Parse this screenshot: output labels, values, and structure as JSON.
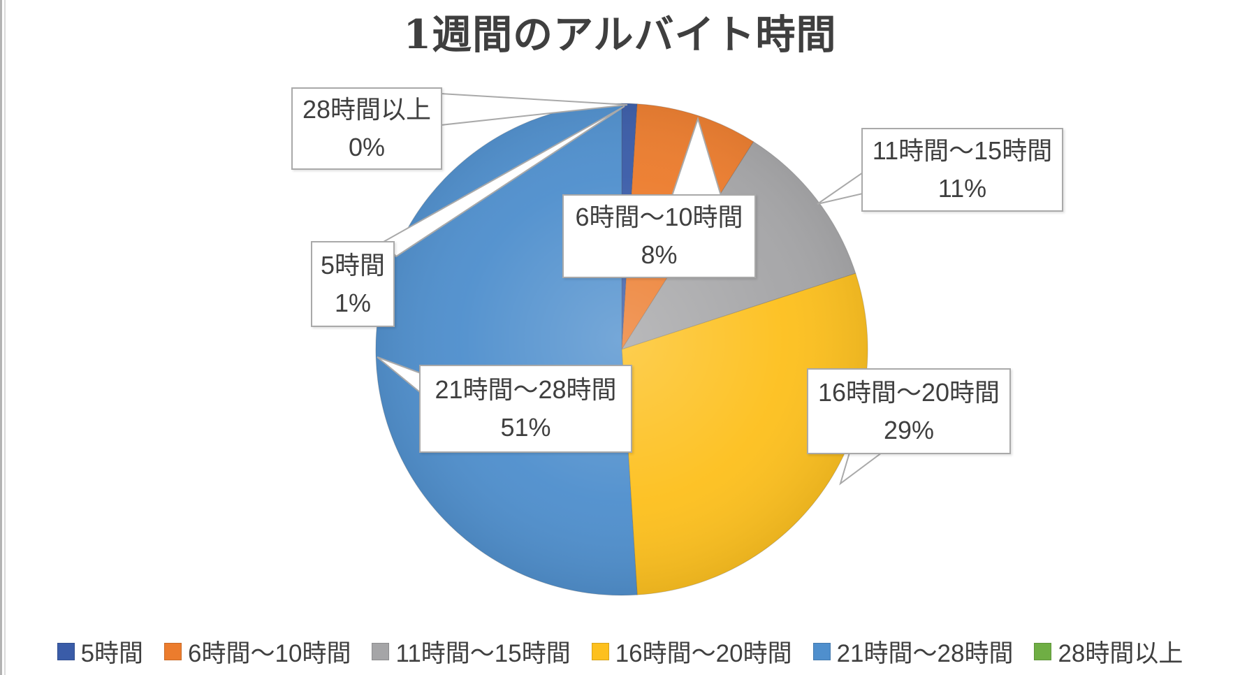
{
  "chart_data": {
    "type": "pie",
    "title": "1週間のアルバイト時間",
    "categories": [
      "5時間",
      "6時間～10時間",
      "11時間～15時間",
      "16時間～20時間",
      "21時間～28時間",
      "28時間以上"
    ],
    "values": [
      1,
      8,
      11,
      29,
      51,
      0
    ],
    "unit": "%",
    "colors": [
      "#3a5ca8",
      "#ec7c2d",
      "#a5a5a7",
      "#fdc01e",
      "#4f8fcd",
      "#6fae44"
    ],
    "start_angle_deg": 0,
    "direction": "clockwise",
    "legend_position": "bottom",
    "data_labels": [
      {
        "category": "5時間",
        "text": "1%"
      },
      {
        "category": "6時間～10時間",
        "text": "8%"
      },
      {
        "category": "11時間～15時間",
        "text": "11%"
      },
      {
        "category": "16時間～20時間",
        "text": "29%"
      },
      {
        "category": "21時間～28時間",
        "text": "51%"
      },
      {
        "category": "28時間以上",
        "text": "0%"
      }
    ]
  },
  "callouts": [
    {
      "label": "28時間以上",
      "value": "0%"
    },
    {
      "label": "5時間",
      "value": "1%"
    },
    {
      "label": "6時間～10時間",
      "value": "8%"
    },
    {
      "label": "11時間～15時間",
      "value": "11%"
    },
    {
      "label": "16時間～20時間",
      "value": "29%"
    },
    {
      "label": "21時間～28時間",
      "value": "51%"
    }
  ],
  "legend": {
    "items": [
      {
        "label": "5時間",
        "color": "#3a5ca8"
      },
      {
        "label": "6時間～10時間",
        "color": "#ec7c2d"
      },
      {
        "label": "11時間～15時間",
        "color": "#a5a5a7"
      },
      {
        "label": "16時間～20時間",
        "color": "#fdc01e"
      },
      {
        "label": "21時間～28時間",
        "color": "#4f8fcd"
      },
      {
        "label": "28時間以上",
        "color": "#6fae44"
      }
    ]
  }
}
